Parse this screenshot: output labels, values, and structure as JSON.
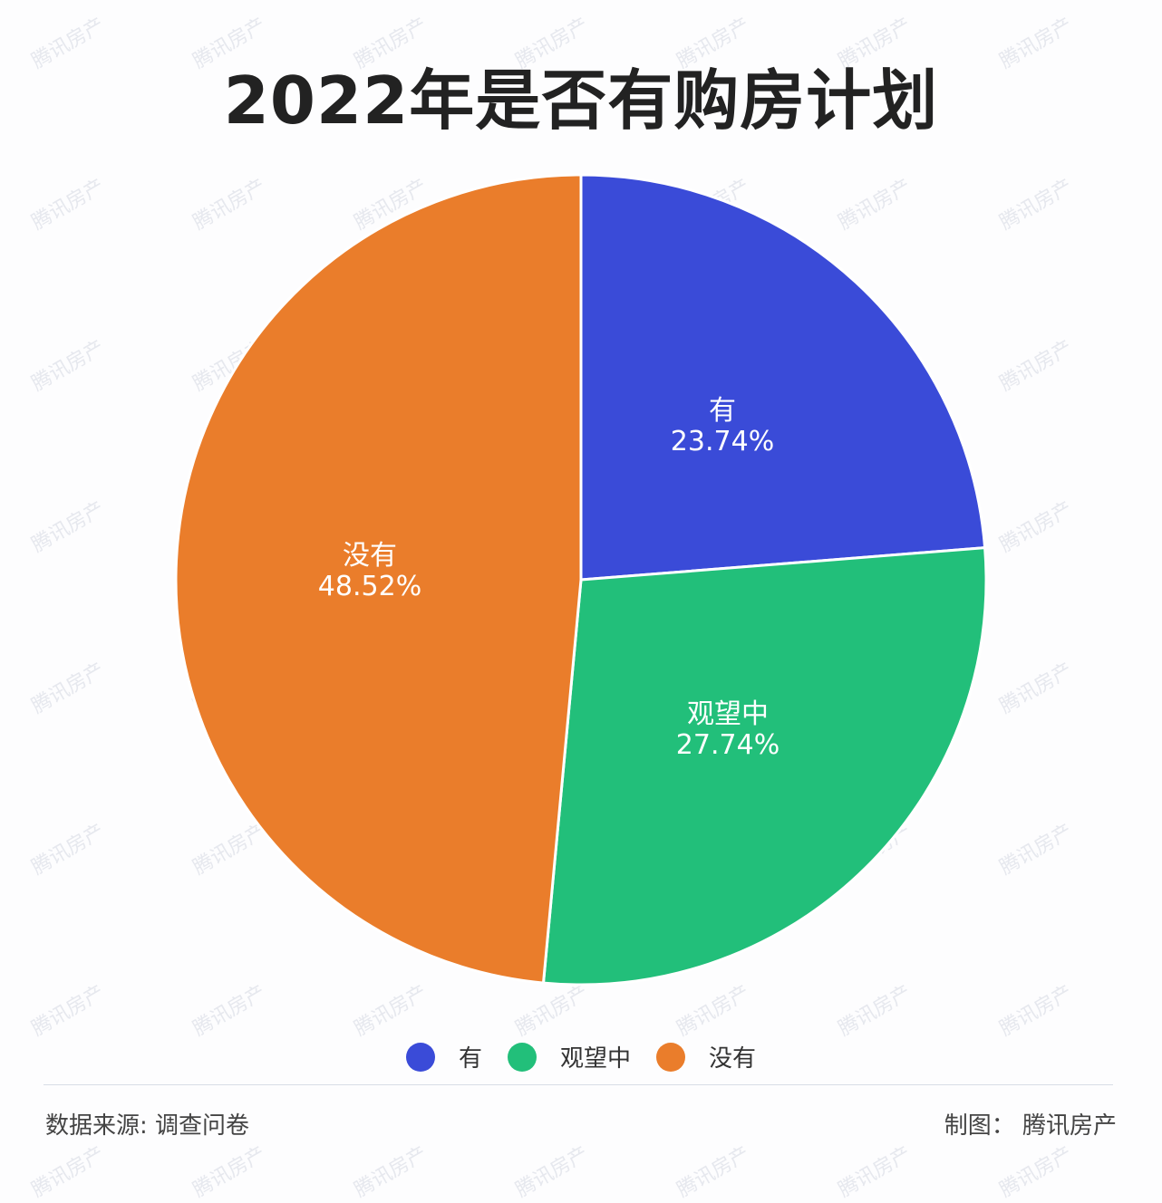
{
  "title": "2022年是否有购房计划",
  "watermark": "腾讯房产",
  "chart_data": {
    "type": "pie",
    "title": "2022年是否有购房计划",
    "categories": [
      "有",
      "观望中",
      "没有"
    ],
    "values": [
      23.74,
      27.74,
      48.52
    ],
    "unit": "%",
    "colors": [
      "#3a4bd8",
      "#22bf7a",
      "#ea7d2b"
    ],
    "start_angle": "12 o'clock, clockwise",
    "legend_position": "bottom"
  },
  "slices": [
    {
      "label": "有",
      "value": "23.74%",
      "color": "#3a4bd8"
    },
    {
      "label": "观望中",
      "value": "27.74%",
      "color": "#22bf7a"
    },
    {
      "label": "没有",
      "value": "48.52%",
      "color": "#ea7d2b"
    }
  ],
  "legend": [
    {
      "label": "有",
      "color": "#3a4bd8"
    },
    {
      "label": "观望中",
      "color": "#22bf7a"
    },
    {
      "label": "没有",
      "color": "#ea7d2b"
    }
  ],
  "footer": {
    "source": "数据来源: 调查问卷",
    "credit": "制图： 腾讯房产"
  }
}
